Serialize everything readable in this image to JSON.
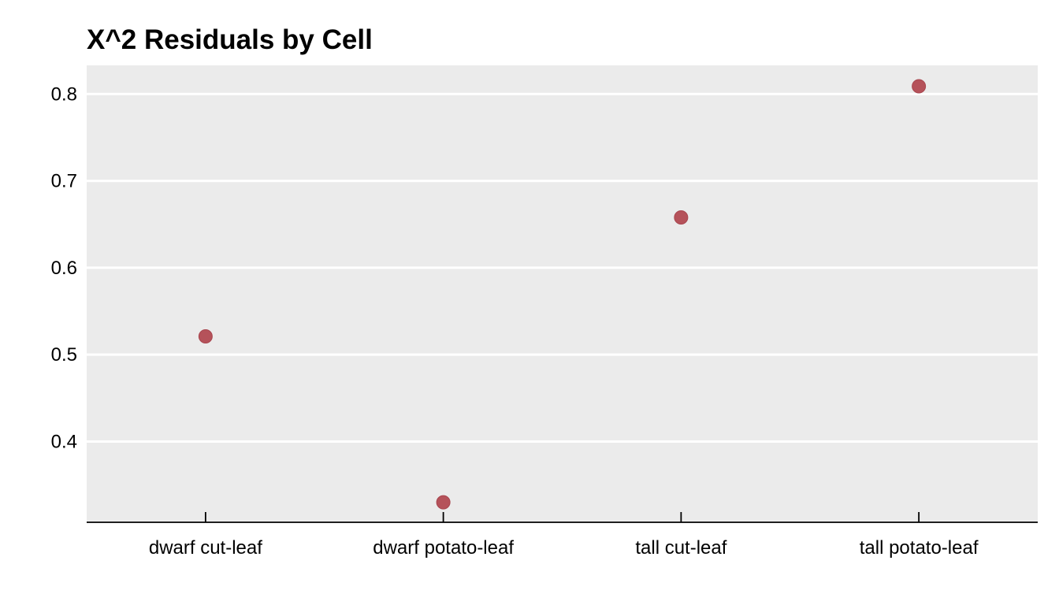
{
  "chart_data": {
    "type": "scatter",
    "title": "X^2 Residuals by Cell",
    "xlabel": "",
    "ylabel": "",
    "categories": [
      "dwarf cut-leaf",
      "dwarf potato-leaf",
      "tall cut-leaf",
      "tall potato-leaf"
    ],
    "series": [
      {
        "values": [
          0.521,
          0.33,
          0.658,
          0.809
        ]
      }
    ],
    "yticks": [
      0.4,
      0.5,
      0.6,
      0.7,
      0.8
    ],
    "ytick_labels": [
      "0.4",
      "0.5",
      "0.6",
      "0.7",
      "0.8"
    ],
    "ylim": [
      0.307,
      0.833
    ],
    "grid": true,
    "colors": {
      "panel_background": "#EBEBEB",
      "gridline": "#FFFFFF",
      "point": "#B5525A",
      "axis_line": "#000000"
    }
  }
}
